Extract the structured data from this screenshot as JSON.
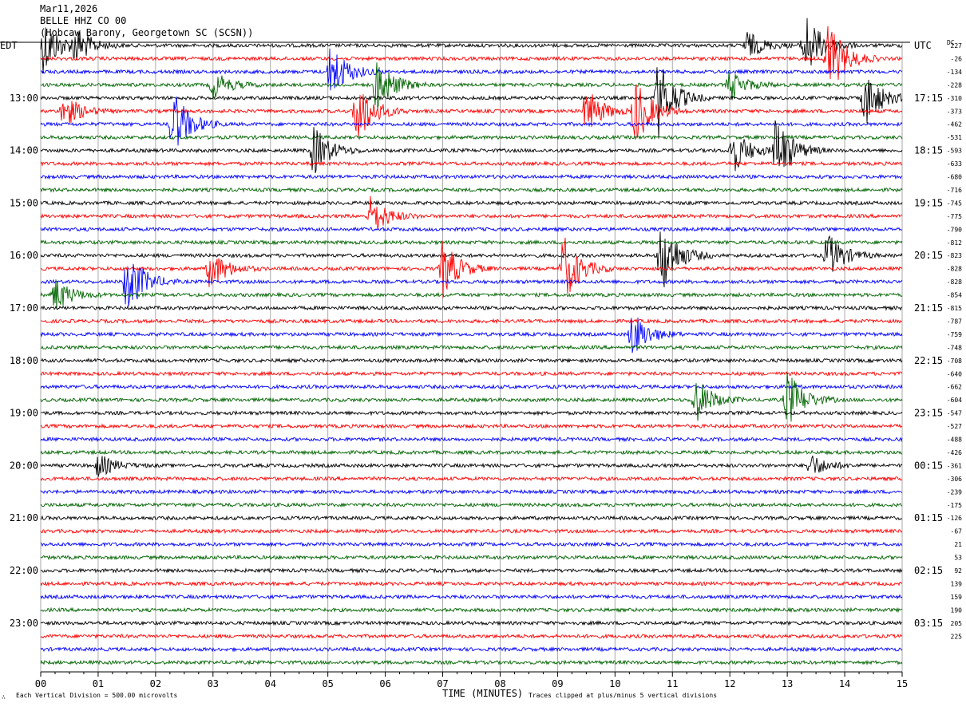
{
  "header": {
    "date": "Mar11,2026",
    "station": "BELLE HHZ CO 00",
    "location": "(Hobcaw Barony, Georgetown SC (SCSN))"
  },
  "left_corner_label": "EDT",
  "right_corner_label": "UTC",
  "dc_label": "DC",
  "footer": {
    "scale_note": "Each Vertical Division =  500.00 microvolts",
    "clip_note": "Traces clipped at plus/minus 5 vertical divisions",
    "x_title": "TIME (MINUTES)"
  },
  "colors": {
    "trace_cycle": [
      "#000000",
      "#ff0000",
      "#0000ff",
      "#006400"
    ],
    "grid": "#aaaaaa"
  },
  "chart_data": {
    "type": "line",
    "subtype": "helicorder",
    "xlim": [
      0,
      15
    ],
    "x_ticks": [
      "00",
      "01",
      "02",
      "03",
      "04",
      "05",
      "06",
      "07",
      "08",
      "09",
      "10",
      "11",
      "12",
      "13",
      "14",
      "15"
    ],
    "rows": 48,
    "minutes_per_row": 15,
    "left_time_labels": [
      "13:00",
      "14:00",
      "15:00",
      "16:00",
      "17:00",
      "18:00",
      "19:00",
      "20:00",
      "21:00",
      "22:00",
      "23:00"
    ],
    "right_time_labels": [
      "17:15",
      "18:15",
      "19:15",
      "20:15",
      "21:15",
      "22:15",
      "23:15",
      "00:15",
      "01:15",
      "02:15",
      "03:15"
    ],
    "hour_label_first_row": 4,
    "dc_offsets": [
      "227",
      "-26",
      "-134",
      "-228",
      "-310",
      "-373",
      "-462",
      "-531",
      "-593",
      "-633",
      "-680",
      "-716",
      "-745",
      "-775",
      "-790",
      "-812",
      "-823",
      "-828",
      "-828",
      "-854",
      "-815",
      "-787",
      "-759",
      "-748",
      "-708",
      "-640",
      "-662",
      "-604",
      "-547",
      "-527",
      "-488",
      "-426",
      "-361",
      "-306",
      "-239",
      "-175",
      "-126",
      "-67",
      "21",
      "53",
      "92",
      "139",
      "159",
      "190",
      "205",
      "225",
      "",
      ""
    ],
    "events": [
      {
        "row": 0,
        "minute": 0.05,
        "amp": 2.5
      },
      {
        "row": 0,
        "minute": 0.6,
        "amp": 1.5
      },
      {
        "row": 0,
        "minute": 13.3,
        "amp": 3.0
      },
      {
        "row": 0,
        "minute": 12.3,
        "amp": 1.2
      },
      {
        "row": 1,
        "minute": 13.7,
        "amp": 3.5
      },
      {
        "row": 2,
        "minute": 5.05,
        "amp": 2.5
      },
      {
        "row": 3,
        "minute": 3.0,
        "amp": 1.2
      },
      {
        "row": 3,
        "minute": 5.85,
        "amp": 2.5
      },
      {
        "row": 3,
        "minute": 12.0,
        "amp": 1.3
      },
      {
        "row": 4,
        "minute": 10.75,
        "amp": 3.5
      },
      {
        "row": 4,
        "minute": 14.35,
        "amp": 2.5
      },
      {
        "row": 5,
        "minute": 0.4,
        "amp": 1.5
      },
      {
        "row": 5,
        "minute": 5.5,
        "amp": 3.0
      },
      {
        "row": 5,
        "minute": 9.5,
        "amp": 2.0
      },
      {
        "row": 5,
        "minute": 10.35,
        "amp": 3.0
      },
      {
        "row": 6,
        "minute": 2.3,
        "amp": 3.0
      },
      {
        "row": 8,
        "minute": 4.75,
        "amp": 2.2
      },
      {
        "row": 8,
        "minute": 12.8,
        "amp": 3.0
      },
      {
        "row": 8,
        "minute": 12.05,
        "amp": 2.0
      },
      {
        "row": 13,
        "minute": 5.75,
        "amp": 1.8
      },
      {
        "row": 16,
        "minute": 10.8,
        "amp": 3.5
      },
      {
        "row": 16,
        "minute": 13.7,
        "amp": 2.0
      },
      {
        "row": 17,
        "minute": 2.95,
        "amp": 1.8
      },
      {
        "row": 17,
        "minute": 7.0,
        "amp": 2.5
      },
      {
        "row": 17,
        "minute": 9.1,
        "amp": 3.0
      },
      {
        "row": 18,
        "minute": 1.5,
        "amp": 3.0
      },
      {
        "row": 19,
        "minute": 0.25,
        "amp": 1.5
      },
      {
        "row": 22,
        "minute": 10.3,
        "amp": 2.0
      },
      {
        "row": 27,
        "minute": 11.4,
        "amp": 2.0
      },
      {
        "row": 27,
        "minute": 13.0,
        "amp": 2.5
      },
      {
        "row": 32,
        "minute": 1.0,
        "amp": 1.0
      },
      {
        "row": 32,
        "minute": 13.4,
        "amp": 1.0
      }
    ]
  }
}
